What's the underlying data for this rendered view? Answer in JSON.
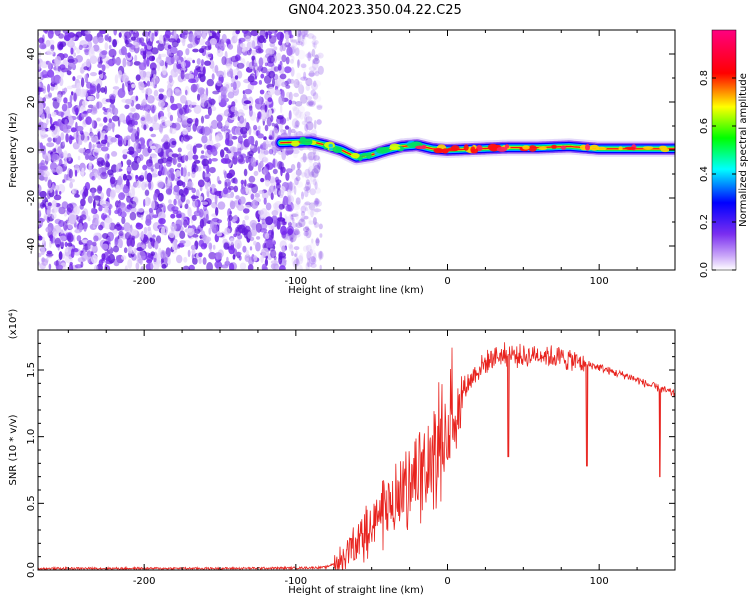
{
  "figure_title": "GN04.2023.350.04.22.C25",
  "chart_data": [
    {
      "type": "heatmap",
      "title": "",
      "xlabel": "Height of straight line (km)",
      "ylabel": "Frequency (Hz)",
      "xlim": [
        -270,
        150
      ],
      "ylim": [
        -50,
        50
      ],
      "xticks": [
        -200,
        -100,
        0,
        100
      ],
      "yticks": [
        40,
        20,
        0,
        -20,
        -40
      ],
      "colorbar": {
        "label": "Normalized spectral amplitude",
        "range": [
          0,
          1
        ],
        "ticks": [
          "0.0",
          "0.2",
          "0.4",
          "0.6",
          "0.8"
        ],
        "colormap": "rainbow (white-violet-blue-cyan-green-yellow-red-magenta)"
      },
      "noise_region": {
        "x_range": [
          -270,
          -90
        ],
        "level": "low, 0.1-0.3",
        "color": "#7a2ef0"
      },
      "signal_ridge": {
        "x": [
          -110,
          -90,
          -80,
          -70,
          -60,
          -50,
          -40,
          -30,
          -20,
          -10,
          0,
          20,
          40,
          60,
          80,
          100,
          120,
          150
        ],
        "frequency": [
          3,
          3.5,
          2,
          0,
          -3,
          -2,
          0,
          1.5,
          2,
          0.5,
          0,
          0.5,
          1,
          1,
          1.5,
          0.5,
          0.5,
          0.5
        ]
      }
    },
    {
      "type": "line",
      "title": "",
      "xlabel": "Height of straight line (km)",
      "ylabel": "SNR (10 * v/v)",
      "scale_note": "(x10⁴)",
      "xlim": [
        -270,
        150
      ],
      "ylim": [
        0,
        1.8
      ],
      "xticks": [
        -200,
        -100,
        0,
        100
      ],
      "yticks": [
        "0.0",
        "0.5",
        "1.0",
        "1.5"
      ],
      "line_color": "#e8231e",
      "series": [
        {
          "x": [
            -270,
            -250,
            -200,
            -150,
            -100,
            -80,
            -70,
            -60,
            -50,
            -40,
            -30,
            -20,
            -10,
            0,
            10,
            20,
            30,
            40,
            50,
            60,
            70,
            80,
            90,
            100,
            110,
            120,
            130,
            140,
            150
          ],
          "values": [
            0.01,
            0.012,
            0.012,
            0.012,
            0.015,
            0.02,
            0.08,
            0.2,
            0.35,
            0.45,
            0.6,
            0.75,
            0.9,
            1.15,
            1.35,
            1.5,
            1.6,
            1.62,
            1.6,
            1.62,
            1.6,
            1.58,
            1.55,
            1.52,
            1.48,
            1.45,
            1.4,
            1.36,
            1.32
          ]
        }
      ],
      "dips": [
        {
          "x": 40,
          "y": 0.85
        },
        {
          "x": 92,
          "y": 0.78
        },
        {
          "x": 140,
          "y": 0.7
        }
      ]
    }
  ]
}
